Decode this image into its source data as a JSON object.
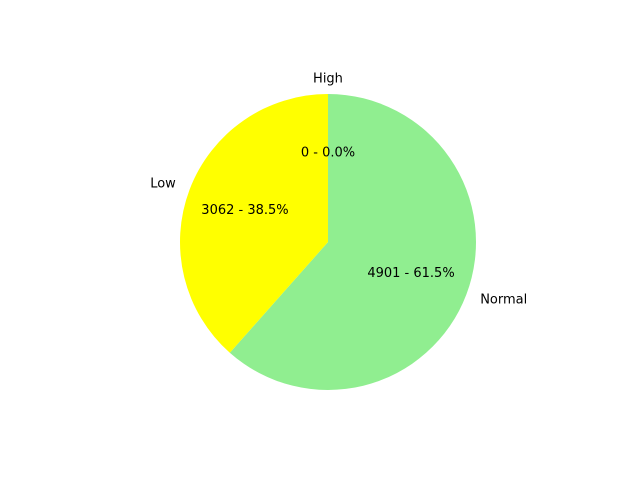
{
  "chart_data": {
    "type": "pie",
    "title": "",
    "slices": [
      {
        "label": "High",
        "value": 0,
        "percent": 0.0,
        "display_label": "0 - 0.0%",
        "color": "#ff0000"
      },
      {
        "label": "Normal",
        "value": 4901,
        "percent": 61.5,
        "display_label": "4901 - 61.5%",
        "color": "#90ee90"
      },
      {
        "label": "Low",
        "value": 3062,
        "percent": 38.5,
        "display_label": "3062 - 38.5%",
        "color": "#ffff00"
      }
    ],
    "start_angle_deg": 90,
    "direction": "clockwise",
    "legend": "none",
    "grid": false
  }
}
